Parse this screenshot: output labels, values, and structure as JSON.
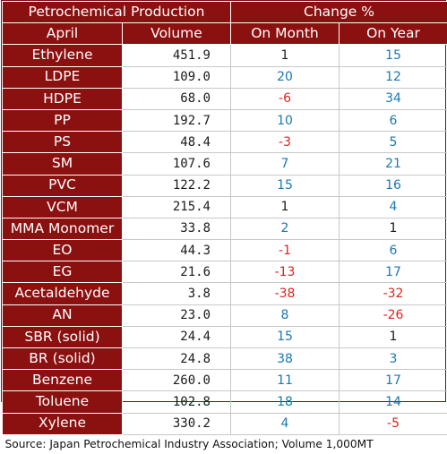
{
  "header": {
    "title": "Petrochemical Production",
    "change_label": "Change %",
    "col_month_label": "April",
    "col_volume_label": "Volume",
    "col_on_month_label": "On Month",
    "col_on_year_label": "On Year"
  },
  "rows": [
    {
      "name": "Ethylene",
      "volume": "451.9",
      "on_month": "1",
      "on_year": "15"
    },
    {
      "name": "LDPE",
      "volume": "109.0",
      "on_month": "20",
      "on_year": "12"
    },
    {
      "name": "HDPE",
      "volume": "68.0",
      "on_month": "-6",
      "on_year": "34"
    },
    {
      "name": "PP",
      "volume": "192.7",
      "on_month": "10",
      "on_year": "6"
    },
    {
      "name": "PS",
      "volume": "48.4",
      "on_month": "-3",
      "on_year": "5"
    },
    {
      "name": "SM",
      "volume": "107.6",
      "on_month": "7",
      "on_year": "21"
    },
    {
      "name": "PVC",
      "volume": "122.2",
      "on_month": "15",
      "on_year": "16"
    },
    {
      "name": "VCM",
      "volume": "215.4",
      "on_month": "1",
      "on_year": "4"
    },
    {
      "name": "MMA Monomer",
      "volume": "33.8",
      "on_month": "2",
      "on_year": "1"
    },
    {
      "name": "EO",
      "volume": "44.3",
      "on_month": "-1",
      "on_year": "6"
    },
    {
      "name": "EG",
      "volume": "21.6",
      "on_month": "-13",
      "on_year": "17"
    },
    {
      "name": "Acetaldehyde",
      "volume": "3.8",
      "on_month": "-38",
      "on_year": "-32"
    },
    {
      "name": "AN",
      "volume": "23.0",
      "on_month": "8",
      "on_year": "-26"
    },
    {
      "name": "SBR (solid)",
      "volume": "24.4",
      "on_month": "15",
      "on_year": "1"
    },
    {
      "name": "BR (solid)",
      "volume": "24.8",
      "on_month": "38",
      "on_year": "3"
    },
    {
      "name": "Benzene",
      "volume": "260.0",
      "on_month": "11",
      "on_year": "17"
    },
    {
      "name": "Toluene",
      "volume": "102.8",
      "on_month": "18",
      "on_year": "14"
    },
    {
      "name": "Xylene",
      "volume": "330.2",
      "on_month": "4",
      "on_year": "-5"
    }
  ],
  "footer": {
    "source": "Source: Japan Petrochemical Industry Association; Volume 1,000MT"
  },
  "colors": {
    "header_bg": "#8b1010",
    "positive": "#1b79b0",
    "negative": "#d9261c",
    "neutral": "#1a1a1a"
  }
}
